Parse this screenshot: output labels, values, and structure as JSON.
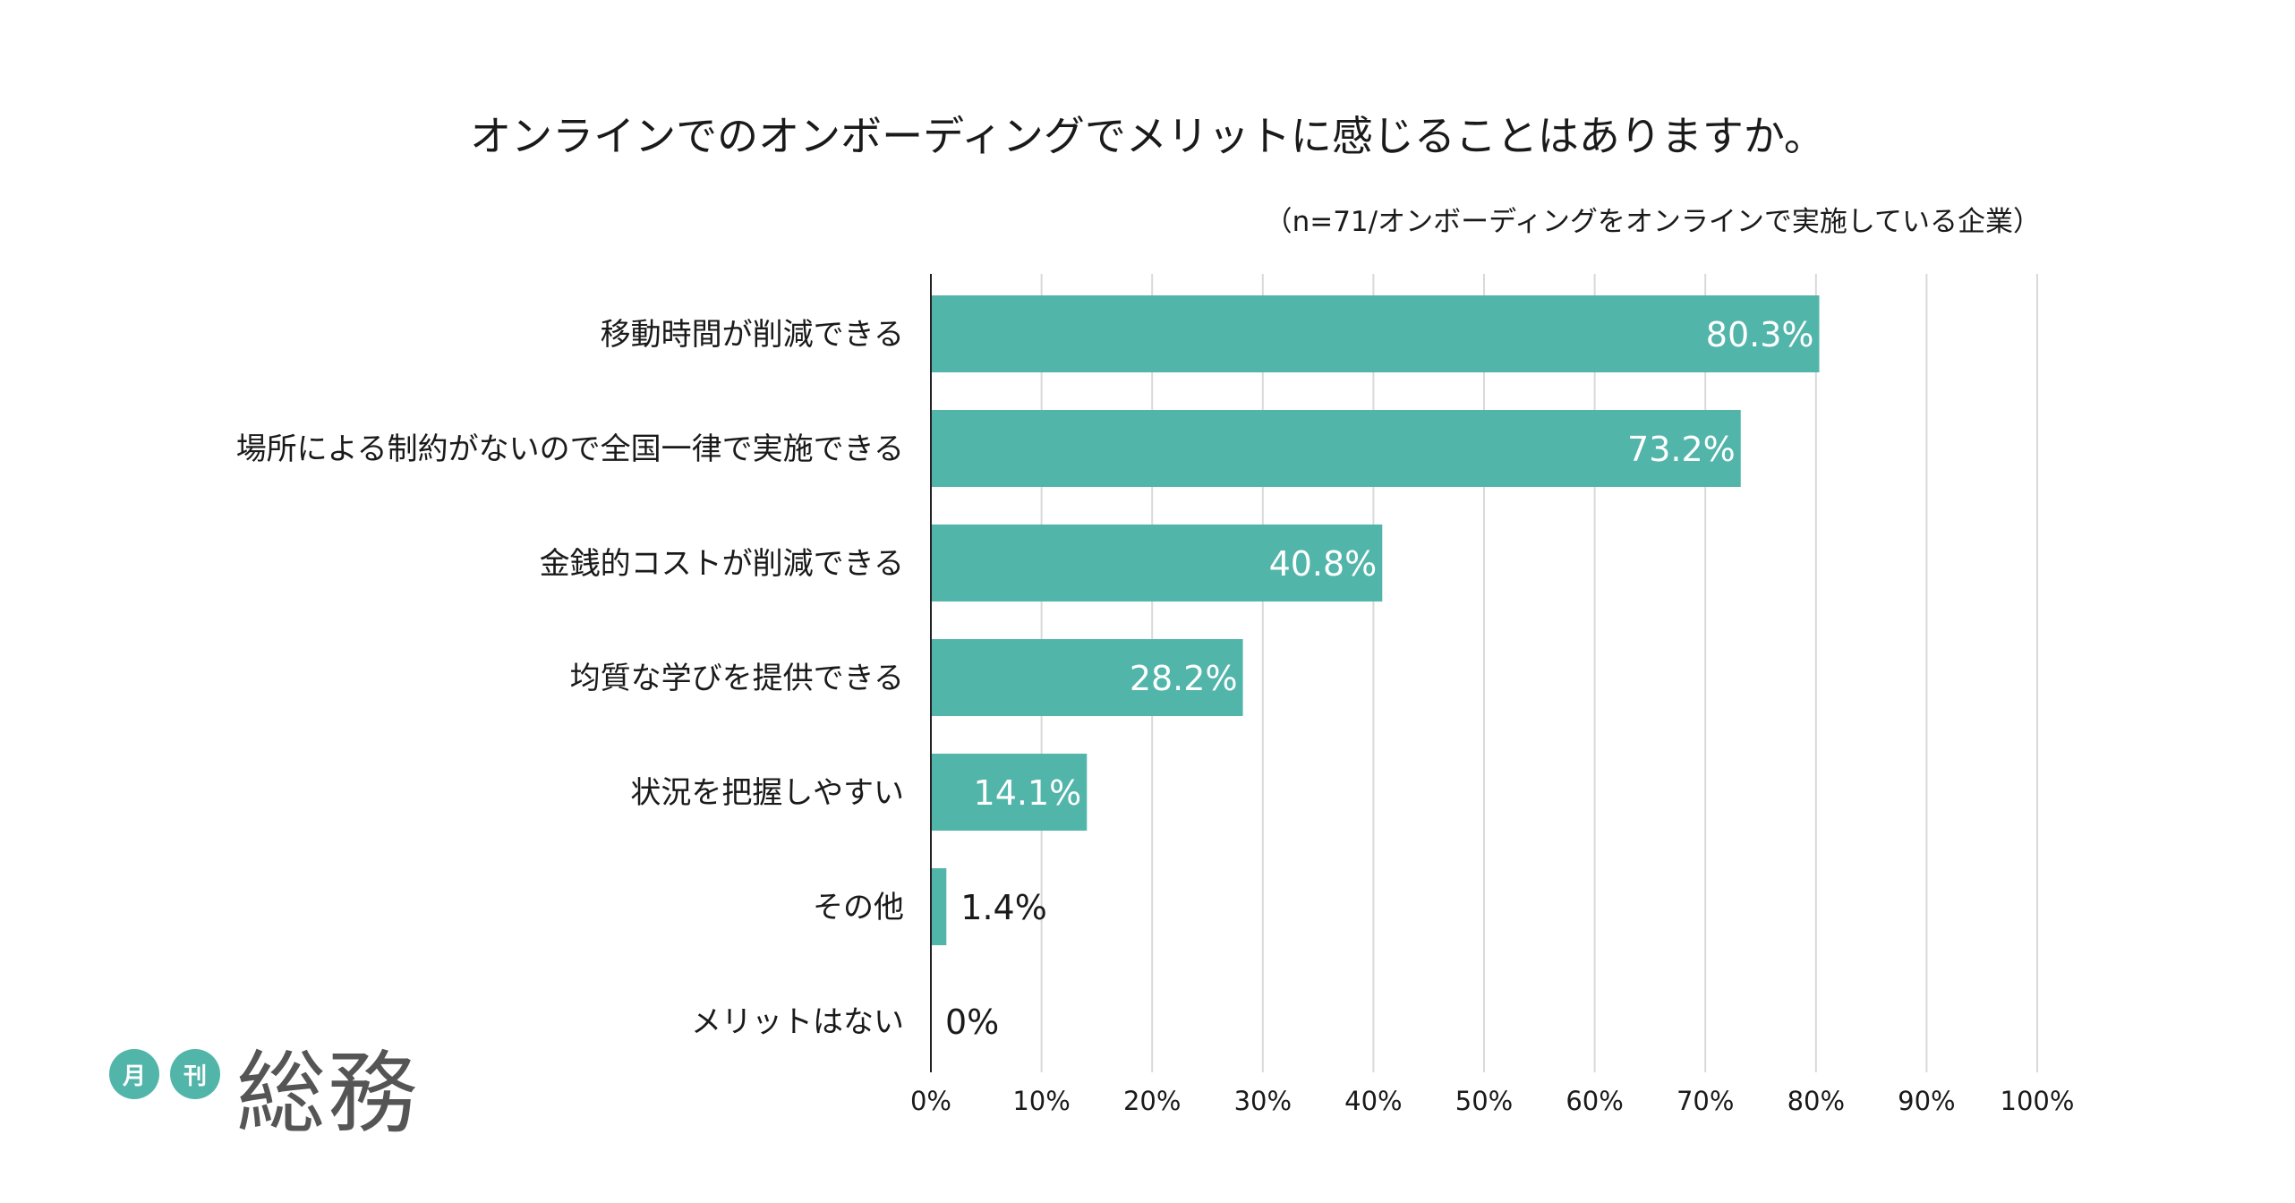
{
  "chart_data": {
    "type": "bar",
    "orientation": "horizontal",
    "title": "オンラインでのオンボーディングでメリットに感じることはありますか。",
    "subtitle": "（n=71/オンボーディングをオンラインで実施している企業）",
    "categories": [
      "移動時間が削減できる",
      "場所による制約がないので全国一律で実施できる",
      "金銭的コストが削減できる",
      "均質な学びを提供できる",
      "状況を把握しやすい",
      "その他",
      "メリットはない"
    ],
    "values": [
      80.3,
      73.2,
      40.8,
      28.2,
      14.1,
      1.4,
      0
    ],
    "value_labels": [
      "80.3%",
      "73.2%",
      "40.8%",
      "28.2%",
      "14.1%",
      "1.4%",
      "0%"
    ],
    "xlim": [
      0,
      100
    ],
    "x_ticks": [
      "0%",
      "10%",
      "20%",
      "30%",
      "40%",
      "50%",
      "60%",
      "70%",
      "80%",
      "90%",
      "100%"
    ],
    "grid": true,
    "bar_color": "#52b5aa"
  },
  "logo": {
    "badge_1": "月",
    "badge_2": "刊",
    "name": "総務"
  }
}
